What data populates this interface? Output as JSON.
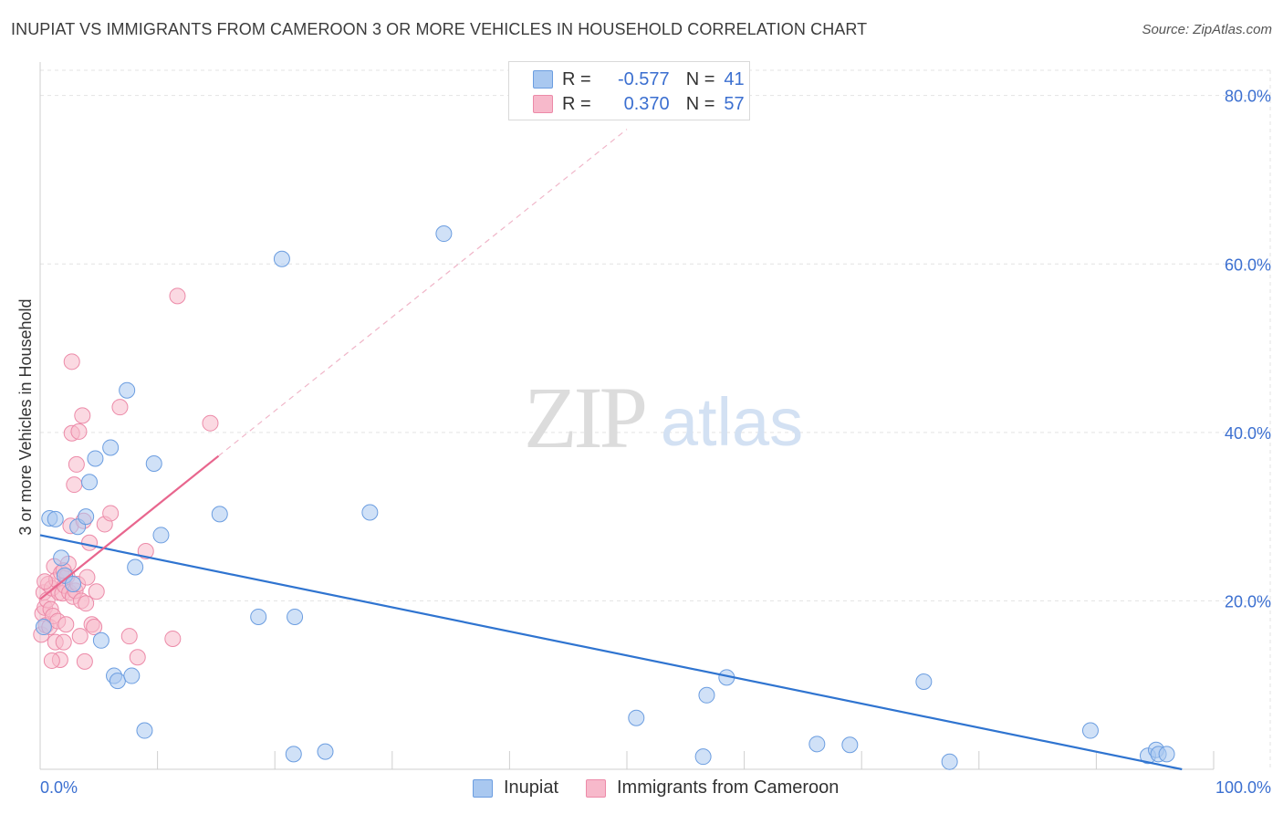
{
  "title": "INUPIAT VS IMMIGRANTS FROM CAMEROON 3 OR MORE VEHICLES IN HOUSEHOLD CORRELATION CHART",
  "source": "Source: ZipAtlas.com",
  "watermark": {
    "zip": "ZIP",
    "atlas": "atlas"
  },
  "legend": {
    "r_label": "R =",
    "n_label": "N =",
    "rows": [
      {
        "name": "Inupiat",
        "r": "-0.577",
        "n": "41",
        "color": "#a9c8f0",
        "stroke": "#6b9de0"
      },
      {
        "name": "Immigrants from Cameroon",
        "r": "0.370",
        "n": "57",
        "color": "#f7b9cb",
        "stroke": "#ec8aa8"
      }
    ]
  },
  "chart_data": {
    "type": "scatter",
    "title": "INUPIAT VS IMMIGRANTS FROM CAMEROON 3 OR MORE VEHICLES IN HOUSEHOLD CORRELATION CHART",
    "xlabel": "",
    "ylabel": "3 or more Vehicles in Household",
    "xlim": [
      0,
      100
    ],
    "ylim": [
      0,
      83
    ],
    "x_tick_labels": [
      "0.0%",
      "100.0%"
    ],
    "y_ticks": [
      20,
      40,
      60,
      80
    ],
    "y_tick_labels": [
      "20.0%",
      "40.0%",
      "60.0%",
      "80.0%"
    ],
    "grid": true,
    "series": [
      {
        "name": "Inupiat",
        "color": "#a9c8f0",
        "stroke": "#6b9de0",
        "line_color": "#2f74d0",
        "trend": {
          "x": [
            0,
            97.3
          ],
          "y": [
            27.8,
            0
          ]
        },
        "points": [
          {
            "x": 0.8,
            "y": 29.8
          },
          {
            "x": 1.3,
            "y": 29.7
          },
          {
            "x": 1.8,
            "y": 25.1
          },
          {
            "x": 2.1,
            "y": 23.0
          },
          {
            "x": 2.8,
            "y": 22.0
          },
          {
            "x": 3.2,
            "y": 28.8
          },
          {
            "x": 3.9,
            "y": 30.0
          },
          {
            "x": 4.2,
            "y": 34.1
          },
          {
            "x": 4.7,
            "y": 36.9
          },
          {
            "x": 5.2,
            "y": 15.3
          },
          {
            "x": 6.0,
            "y": 38.2
          },
          {
            "x": 6.3,
            "y": 11.1
          },
          {
            "x": 6.6,
            "y": 10.5
          },
          {
            "x": 7.4,
            "y": 45.0
          },
          {
            "x": 7.8,
            "y": 11.1
          },
          {
            "x": 8.1,
            "y": 24.0
          },
          {
            "x": 8.9,
            "y": 4.6
          },
          {
            "x": 9.7,
            "y": 36.3
          },
          {
            "x": 10.3,
            "y": 27.8
          },
          {
            "x": 15.3,
            "y": 30.3
          },
          {
            "x": 18.6,
            "y": 18.1
          },
          {
            "x": 20.6,
            "y": 60.6
          },
          {
            "x": 21.6,
            "y": 1.8
          },
          {
            "x": 21.7,
            "y": 18.1
          },
          {
            "x": 24.3,
            "y": 2.1
          },
          {
            "x": 28.1,
            "y": 30.5
          },
          {
            "x": 34.4,
            "y": 63.6
          },
          {
            "x": 50.8,
            "y": 6.1
          },
          {
            "x": 56.5,
            "y": 1.5
          },
          {
            "x": 56.8,
            "y": 8.8
          },
          {
            "x": 58.5,
            "y": 10.9
          },
          {
            "x": 66.2,
            "y": 3.0
          },
          {
            "x": 69.0,
            "y": 2.9
          },
          {
            "x": 75.3,
            "y": 10.4
          },
          {
            "x": 77.5,
            "y": 0.9
          },
          {
            "x": 89.5,
            "y": 4.6
          },
          {
            "x": 94.4,
            "y": 1.6
          },
          {
            "x": 95.1,
            "y": 2.3
          },
          {
            "x": 95.3,
            "y": 1.8
          },
          {
            "x": 96.0,
            "y": 1.8
          },
          {
            "x": 0.3,
            "y": 16.9
          }
        ]
      },
      {
        "name": "Immigrants from Cameroon",
        "color": "#f7b9cb",
        "stroke": "#ec8aa8",
        "line_color": "#e8668e",
        "trend": {
          "x": [
            0,
            15.2
          ],
          "y": [
            20.2,
            37.2
          ]
        },
        "trend_extension": {
          "x": [
            15.2,
            50.0
          ],
          "y": [
            37.2,
            76.0
          ]
        },
        "points": [
          {
            "x": 0.1,
            "y": 16.0
          },
          {
            "x": 0.2,
            "y": 18.5
          },
          {
            "x": 0.3,
            "y": 21.0
          },
          {
            "x": 0.4,
            "y": 19.2
          },
          {
            "x": 0.5,
            "y": 17.1
          },
          {
            "x": 0.6,
            "y": 20.1
          },
          {
            "x": 0.7,
            "y": 22.0
          },
          {
            "x": 0.8,
            "y": 16.9
          },
          {
            "x": 0.9,
            "y": 19.0
          },
          {
            "x": 1.0,
            "y": 21.5
          },
          {
            "x": 1.1,
            "y": 18.2
          },
          {
            "x": 1.2,
            "y": 24.1
          },
          {
            "x": 1.3,
            "y": 15.1
          },
          {
            "x": 1.4,
            "y": 22.5
          },
          {
            "x": 1.5,
            "y": 17.6
          },
          {
            "x": 1.6,
            "y": 21.0
          },
          {
            "x": 1.7,
            "y": 13.0
          },
          {
            "x": 1.8,
            "y": 23.3
          },
          {
            "x": 1.9,
            "y": 20.9
          },
          {
            "x": 2.0,
            "y": 15.1
          },
          {
            "x": 2.1,
            "y": 21.8
          },
          {
            "x": 2.2,
            "y": 17.2
          },
          {
            "x": 2.3,
            "y": 22.9
          },
          {
            "x": 2.4,
            "y": 24.4
          },
          {
            "x": 2.5,
            "y": 21.0
          },
          {
            "x": 2.6,
            "y": 28.9
          },
          {
            "x": 2.7,
            "y": 39.9
          },
          {
            "x": 2.8,
            "y": 20.5
          },
          {
            "x": 2.9,
            "y": 33.8
          },
          {
            "x": 3.0,
            "y": 21.2
          },
          {
            "x": 3.1,
            "y": 36.2
          },
          {
            "x": 3.2,
            "y": 22.0
          },
          {
            "x": 3.3,
            "y": 40.1
          },
          {
            "x": 3.4,
            "y": 15.8
          },
          {
            "x": 3.5,
            "y": 20.0
          },
          {
            "x": 3.6,
            "y": 42.0
          },
          {
            "x": 3.7,
            "y": 29.5
          },
          {
            "x": 3.8,
            "y": 12.8
          },
          {
            "x": 3.9,
            "y": 19.7
          },
          {
            "x": 4.0,
            "y": 22.8
          },
          {
            "x": 4.2,
            "y": 26.9
          },
          {
            "x": 4.4,
            "y": 17.2
          },
          {
            "x": 4.6,
            "y": 16.9
          },
          {
            "x": 4.8,
            "y": 21.1
          },
          {
            "x": 5.5,
            "y": 29.1
          },
          {
            "x": 6.0,
            "y": 30.4
          },
          {
            "x": 6.8,
            "y": 43.0
          },
          {
            "x": 7.6,
            "y": 15.8
          },
          {
            "x": 8.3,
            "y": 13.3
          },
          {
            "x": 9.0,
            "y": 25.9
          },
          {
            "x": 11.3,
            "y": 15.5
          },
          {
            "x": 11.7,
            "y": 56.2
          },
          {
            "x": 14.5,
            "y": 41.1
          },
          {
            "x": 2.7,
            "y": 48.4
          },
          {
            "x": 0.4,
            "y": 22.3
          },
          {
            "x": 1.0,
            "y": 12.9
          },
          {
            "x": 2.0,
            "y": 23.6
          }
        ]
      }
    ]
  }
}
